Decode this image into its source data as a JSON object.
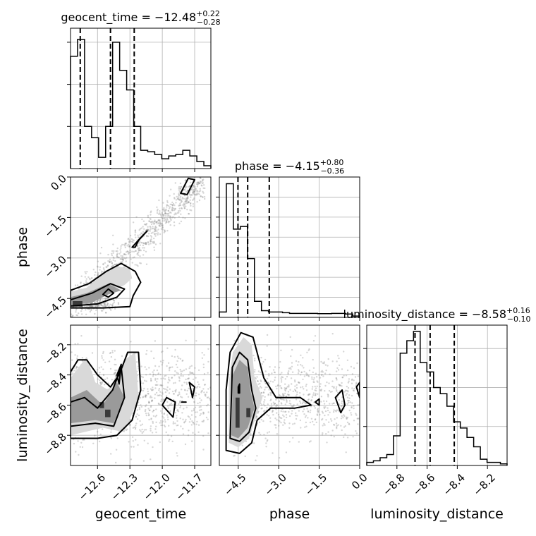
{
  "chart_data": {
    "type": "corner",
    "parameters": [
      {
        "name": "geocent_time",
        "xlabel": "geocent_time",
        "title_param": "geocent_time",
        "median": "−12.48",
        "plus": "+0.22",
        "minus": "−0.28",
        "range": [
          -12.85,
          -11.55
        ],
        "ticks": [
          -12.6,
          -12.3,
          -12.0,
          -11.7
        ],
        "tick_labels": [
          "−12.6",
          "−12.3",
          "−12.0",
          "−11.7"
        ],
        "quantiles": [
          -12.76,
          -12.48,
          -12.26
        ],
        "hist_values": [
          0.8,
          0.92,
          0.3,
          0.22,
          0.08,
          0.3,
          0.9,
          0.7,
          0.56,
          0.3,
          0.13,
          0.12,
          0.1,
          0.07,
          0.09,
          0.1,
          0.13,
          0.09,
          0.05,
          0.02
        ],
        "hist_ylim": [
          0,
          1
        ],
        "hist_yticks": [
          0.3,
          0.6,
          0.9
        ]
      },
      {
        "name": "phase",
        "xlabel": "phase",
        "ylabel": "phase",
        "title_param": "phase",
        "median": "−4.15",
        "plus": "+0.80",
        "minus": "−0.36",
        "range": [
          -5.2,
          0.0
        ],
        "ticks": [
          -4.5,
          -3.0,
          -1.5,
          0.0
        ],
        "tick_labels": [
          "−4.5",
          "−3.0",
          "−1.5",
          "0.0"
        ],
        "quantiles": [
          -4.51,
          -4.15,
          -3.35
        ],
        "hist_values": [
          0.04,
          1.0,
          0.66,
          0.68,
          0.44,
          0.12,
          0.05,
          0.04,
          0.04,
          0.035,
          0.03,
          0.03,
          0.03,
          0.03,
          0.028,
          0.028,
          0.03,
          0.03,
          0.025,
          0.01
        ],
        "hist_ylim": [
          0,
          1.05
        ],
        "hist_yticks": [
          0.15,
          0.3,
          0.45,
          0.6,
          0.75,
          0.9
        ]
      },
      {
        "name": "luminosity_distance",
        "xlabel": "luminosity_distance",
        "ylabel": "luminosity_distance",
        "title_param": "luminosity_distance",
        "median": "−8.58",
        "plus": "+0.16",
        "minus": "−0.10",
        "range": [
          -9.0,
          -8.07
        ],
        "ticks": [
          -8.8,
          -8.6,
          -8.4,
          -8.2
        ],
        "tick_labels": [
          "−8.8",
          "−8.6",
          "−8.4",
          "−8.2"
        ],
        "quantiles": [
          -8.68,
          -8.58,
          -8.42
        ],
        "hist_values": [
          0.02,
          0.03,
          0.05,
          0.07,
          0.19,
          0.72,
          0.8,
          0.86,
          0.66,
          0.6,
          0.5,
          0.46,
          0.38,
          0.28,
          0.24,
          0.18,
          0.12,
          0.04,
          0.02,
          0.02,
          0.01
        ],
        "hist_ylim": [
          0,
          0.9
        ],
        "hist_yticks": [
          0.25,
          0.5,
          0.75
        ]
      }
    ],
    "grid": true
  }
}
